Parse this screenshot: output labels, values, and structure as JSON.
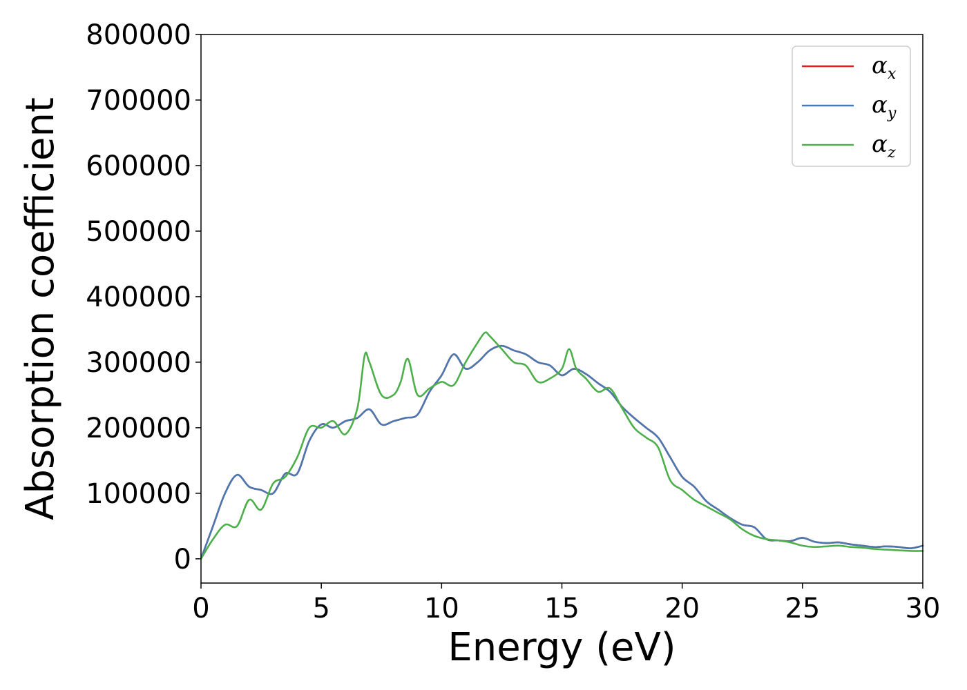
{
  "chart_data": {
    "type": "line",
    "xlabel": "Energy (eV)",
    "ylabel": "Absorption coefficient",
    "xlim": [
      0,
      30
    ],
    "ylim": [
      -37000,
      800000
    ],
    "x_ticks": [
      0,
      5,
      10,
      15,
      20,
      25,
      30
    ],
    "x_tick_labels": [
      "0",
      "5",
      "10",
      "15",
      "20",
      "25",
      "30"
    ],
    "y_ticks": [
      0,
      100000,
      200000,
      300000,
      400000,
      500000,
      600000,
      700000,
      800000
    ],
    "y_tick_labels": [
      "0",
      "100000",
      "200000",
      "300000",
      "400000",
      "500000",
      "600000",
      "700000",
      "800000"
    ],
    "grid": false,
    "legend_position": "top-right",
    "series": [
      {
        "name": "α_x",
        "label_main": "α",
        "label_sub": "x",
        "color": "#e41a1c",
        "x": [
          0,
          0.5,
          1.0,
          1.5,
          2.0,
          2.5,
          3.0,
          3.5,
          4.0,
          4.5,
          5.0,
          5.5,
          6.0,
          6.5,
          7.0,
          7.5,
          8.0,
          8.5,
          9.0,
          9.5,
          10.0,
          10.5,
          11.0,
          11.5,
          12.0,
          12.5,
          13.0,
          13.5,
          14.0,
          14.5,
          15.0,
          15.5,
          16.0,
          16.5,
          17.0,
          17.5,
          18.0,
          18.5,
          19.0,
          19.5,
          20.0,
          20.5,
          21.0,
          21.5,
          22.0,
          22.5,
          23.0,
          23.5,
          24.0,
          24.5,
          25.0,
          25.5,
          26.0,
          26.5,
          27.0,
          27.5,
          28.0,
          28.5,
          29.0,
          29.5,
          30.0
        ],
        "y": [
          0,
          50000,
          100000,
          128000,
          110000,
          105000,
          100000,
          130000,
          130000,
          180000,
          205000,
          200000,
          210000,
          215000,
          228000,
          205000,
          210000,
          215000,
          220000,
          255000,
          280000,
          312000,
          290000,
          300000,
          318000,
          325000,
          318000,
          312000,
          300000,
          295000,
          280000,
          290000,
          282000,
          268000,
          255000,
          232000,
          215000,
          200000,
          185000,
          155000,
          125000,
          110000,
          88000,
          75000,
          62000,
          52000,
          48000,
          30000,
          28000,
          27000,
          32000,
          26000,
          24000,
          25000,
          22000,
          20000,
          18000,
          19000,
          18000,
          16000,
          20000
        ]
      },
      {
        "name": "α_y",
        "label_main": "α",
        "label_sub": "y",
        "color": "#4a78b0",
        "x": [
          0,
          0.5,
          1.0,
          1.5,
          2.0,
          2.5,
          3.0,
          3.5,
          4.0,
          4.5,
          5.0,
          5.5,
          6.0,
          6.5,
          7.0,
          7.5,
          8.0,
          8.5,
          9.0,
          9.5,
          10.0,
          10.5,
          11.0,
          11.5,
          12.0,
          12.5,
          13.0,
          13.5,
          14.0,
          14.5,
          15.0,
          15.5,
          16.0,
          16.5,
          17.0,
          17.5,
          18.0,
          18.5,
          19.0,
          19.5,
          20.0,
          20.5,
          21.0,
          21.5,
          22.0,
          22.5,
          23.0,
          23.5,
          24.0,
          24.5,
          25.0,
          25.5,
          26.0,
          26.5,
          27.0,
          27.5,
          28.0,
          28.5,
          29.0,
          29.5,
          30.0
        ],
        "y": [
          0,
          50000,
          100000,
          128000,
          110000,
          105000,
          100000,
          130000,
          130000,
          180000,
          205000,
          200000,
          210000,
          215000,
          228000,
          205000,
          210000,
          215000,
          220000,
          255000,
          280000,
          312000,
          290000,
          300000,
          318000,
          325000,
          318000,
          312000,
          300000,
          295000,
          280000,
          290000,
          282000,
          268000,
          255000,
          232000,
          215000,
          200000,
          185000,
          155000,
          125000,
          110000,
          88000,
          75000,
          62000,
          52000,
          48000,
          30000,
          28000,
          27000,
          32000,
          26000,
          24000,
          25000,
          22000,
          20000,
          18000,
          19000,
          18000,
          16000,
          20000
        ]
      },
      {
        "name": "α_z",
        "label_main": "α",
        "label_sub": "z",
        "color": "#4daf4a",
        "x": [
          0,
          0.5,
          1.0,
          1.5,
          2.0,
          2.5,
          3.0,
          3.5,
          4.0,
          4.5,
          5.0,
          5.5,
          6.0,
          6.5,
          6.8,
          7.0,
          7.5,
          8.0,
          8.3,
          8.6,
          9.0,
          9.5,
          10.0,
          10.5,
          11.0,
          11.5,
          11.8,
          12.0,
          12.5,
          13.0,
          13.5,
          14.0,
          14.5,
          15.0,
          15.3,
          15.6,
          16.0,
          16.5,
          17.0,
          17.5,
          18.0,
          18.5,
          19.0,
          19.5,
          20.0,
          20.5,
          21.0,
          21.5,
          22.0,
          22.5,
          23.0,
          23.5,
          24.0,
          24.5,
          25.0,
          25.5,
          26.0,
          26.5,
          27.0,
          27.5,
          28.0,
          28.5,
          29.0,
          29.5,
          30.0
        ],
        "y": [
          0,
          30000,
          52000,
          50000,
          90000,
          75000,
          115000,
          125000,
          155000,
          200000,
          200000,
          210000,
          190000,
          230000,
          310000,
          300000,
          250000,
          250000,
          270000,
          305000,
          250000,
          260000,
          270000,
          265000,
          300000,
          330000,
          345000,
          340000,
          320000,
          300000,
          295000,
          270000,
          275000,
          290000,
          320000,
          290000,
          275000,
          255000,
          260000,
          230000,
          200000,
          185000,
          170000,
          120000,
          105000,
          90000,
          80000,
          70000,
          60000,
          45000,
          35000,
          30000,
          28000,
          25000,
          20000,
          18000,
          19000,
          20000,
          18000,
          17000,
          15000,
          14000,
          13000,
          12000,
          12000
        ]
      }
    ]
  }
}
